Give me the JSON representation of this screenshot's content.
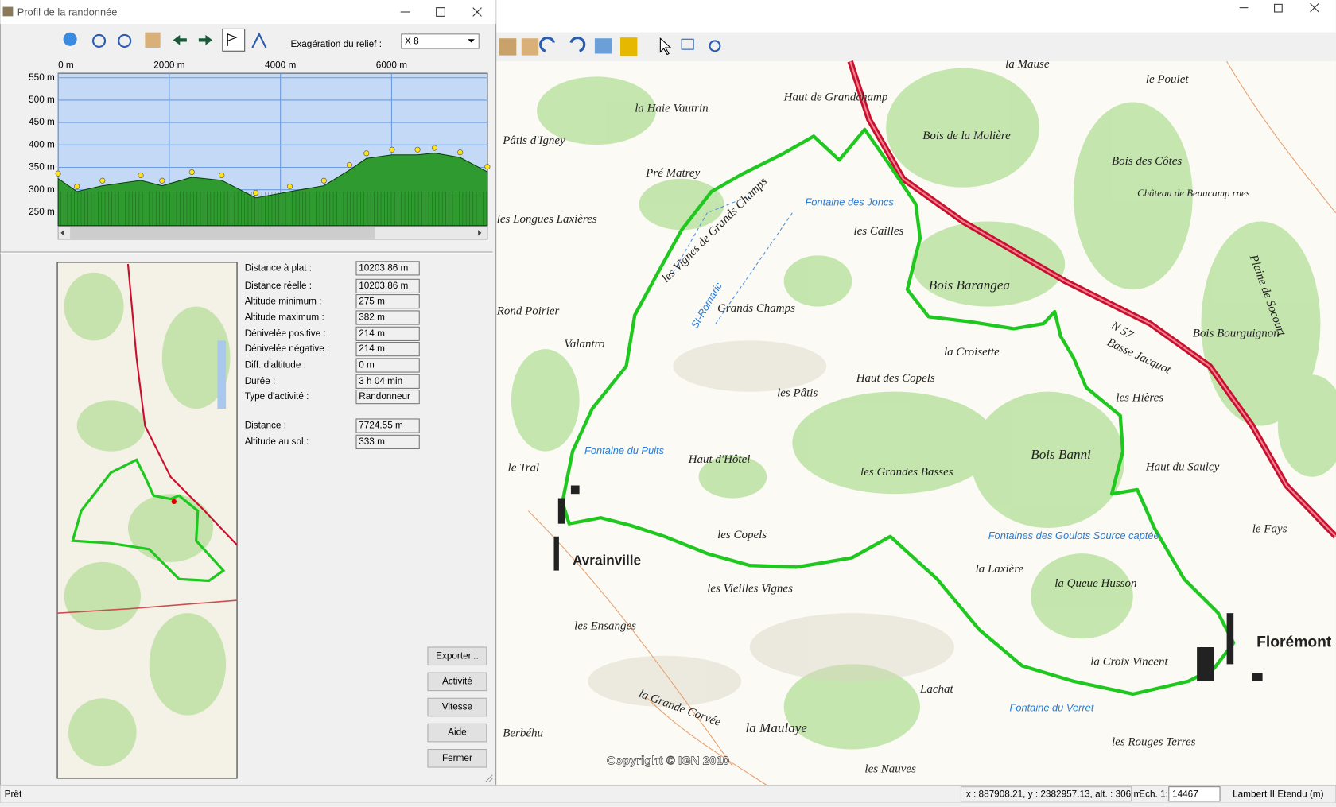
{
  "window": {
    "title": "Profil de la randonnée"
  },
  "toolbar": {
    "exaggeration_label": "Exagération du relief :",
    "exaggeration_value": "X 8"
  },
  "chart_data": {
    "type": "area",
    "x": [
      0,
      337,
      797,
      1487,
      1870,
      2406,
      2943,
      3556,
      4169,
      4782,
      5241,
      5548,
      6008,
      6467,
      6774,
      7234,
      7724
    ],
    "values": [
      325,
      296,
      309,
      321,
      309,
      328,
      321,
      282,
      296,
      309,
      344,
      370,
      378,
      378,
      382,
      372,
      340
    ],
    "xlim": [
      0,
      7724.55
    ],
    "ylim": [
      220,
      560
    ],
    "xticks": [
      {
        "value": 0,
        "label": "0 m"
      },
      {
        "value": 2000,
        "label": "2000 m"
      },
      {
        "value": 4000,
        "label": "4000 m"
      },
      {
        "value": 6000,
        "label": "6000 m"
      }
    ],
    "yticks": [
      {
        "value": 550,
        "label": "550 m"
      },
      {
        "value": 500,
        "label": "500 m"
      },
      {
        "value": 450,
        "label": "450 m"
      },
      {
        "value": 400,
        "label": "400 m"
      },
      {
        "value": 350,
        "label": "350 m"
      },
      {
        "value": 300,
        "label": "300 m"
      },
      {
        "value": 250,
        "label": "250 m"
      }
    ],
    "grid": true,
    "color": "#2f9a2f",
    "marker_color": "#ffe21a"
  },
  "stats": {
    "rows": [
      {
        "label": "Distance à plat :",
        "value": "10203.86 m"
      },
      {
        "label": "Distance réelle :",
        "value": "10203.86 m"
      },
      {
        "label": "Altitude minimum :",
        "value": "275 m"
      },
      {
        "label": "Altitude maximum :",
        "value": "382 m"
      },
      {
        "label": "Dénivelée positive :",
        "value": "214 m"
      },
      {
        "label": "Dénivelée négative :",
        "value": "214 m"
      },
      {
        "label": "Diff. d'altitude :",
        "value": "0 m"
      },
      {
        "label": "Durée :",
        "value": "3 h 04 min"
      },
      {
        "label": "Type d'activité :",
        "value": "Randonneur"
      },
      {
        "label": "Distance :",
        "value": "7724.55 m"
      },
      {
        "label": "Altitude au sol :",
        "value": "333 m"
      }
    ]
  },
  "buttons": [
    "Exporter...",
    "Activité",
    "Vitesse",
    "Aide",
    "Fermer"
  ],
  "map": {
    "labels": [
      "la Mause",
      "le Poulet",
      "Haut de Grandchamp",
      "la Haie Vautrin",
      "Pâtis d'Igney",
      "Pré Matrey",
      "Bois de la Molière",
      "Bois des Côtes",
      "Château de Beaucamp rnes",
      "Plaine de Socourt",
      "les Longues Laxières",
      "les Vignes de Grands Champs",
      "Fontaine des Joncs",
      "les Cailles",
      "Bois Barangea",
      "Rond Poirier",
      "Valantro",
      "Grands Champs",
      "N 57",
      "Basse Jacquot",
      "Bois Bourguignon",
      "la Croisette",
      "Haut des Copels",
      "les Pâtis",
      "les Hières",
      "le Tral",
      "Fontaine du Puits",
      "Haut d'Hôtel",
      "les Grandes Basses",
      "Bois Banni",
      "Haut du Saulcy",
      "les Copels",
      "Avrainville",
      "les Vieilles Vignes",
      "Fontaines des Goulots Source captée",
      "la Laxière",
      "la Queue Husson",
      "le Fays",
      "Florémont",
      "les Ensanges",
      "la Croix Vincent",
      "Lachat",
      "la Grande Corvée",
      "la Maulaye",
      "Fontaine du Verret",
      "Berbéhu",
      "les Rouges Terres",
      "les Nauves",
      "St-Romaric"
    ],
    "copyright": "Copyright © IGN 2010"
  },
  "status": {
    "left": "Prêt",
    "coords": "x : 887908.21, y : 2382957.13, alt. : 306 m",
    "scale_label": "Ech. 1:",
    "scale_value": "14467",
    "projection": "Lambert II Etendu (m)"
  }
}
